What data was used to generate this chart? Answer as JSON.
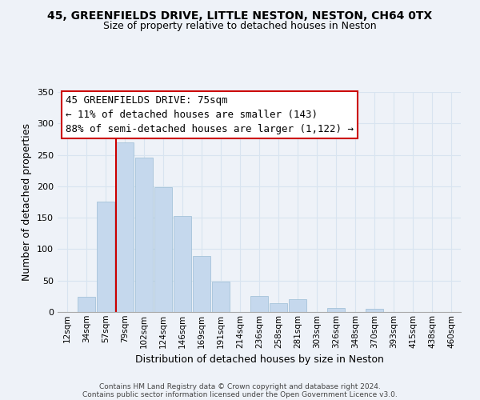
{
  "title": "45, GREENFIELDS DRIVE, LITTLE NESTON, NESTON, CH64 0TX",
  "subtitle": "Size of property relative to detached houses in Neston",
  "xlabel": "Distribution of detached houses by size in Neston",
  "ylabel": "Number of detached properties",
  "bar_labels": [
    "12sqm",
    "34sqm",
    "57sqm",
    "79sqm",
    "102sqm",
    "124sqm",
    "146sqm",
    "169sqm",
    "191sqm",
    "214sqm",
    "236sqm",
    "258sqm",
    "281sqm",
    "303sqm",
    "326sqm",
    "348sqm",
    "370sqm",
    "393sqm",
    "415sqm",
    "438sqm",
    "460sqm"
  ],
  "bar_values": [
    0,
    24,
    176,
    270,
    246,
    198,
    153,
    89,
    48,
    0,
    25,
    14,
    21,
    0,
    7,
    0,
    5,
    0,
    0,
    0,
    0
  ],
  "bar_color": "#c5d8ed",
  "bar_edge_color": "#9bbdd4",
  "grid_color": "#d8e4f0",
  "vline_x_index": 3,
  "vline_color": "#cc0000",
  "ylim": [
    0,
    350
  ],
  "yticks": [
    0,
    50,
    100,
    150,
    200,
    250,
    300,
    350
  ],
  "annotation_text": "45 GREENFIELDS DRIVE: 75sqm\n← 11% of detached houses are smaller (143)\n88% of semi-detached houses are larger (1,122) →",
  "annotation_box_color": "#ffffff",
  "annotation_box_edge": "#cc0000",
  "footer_line1": "Contains HM Land Registry data © Crown copyright and database right 2024.",
  "footer_line2": "Contains public sector information licensed under the Open Government Licence v3.0.",
  "background_color": "#eef2f8",
  "title_fontsize": 10,
  "subtitle_fontsize": 9,
  "annotation_fontsize": 9
}
